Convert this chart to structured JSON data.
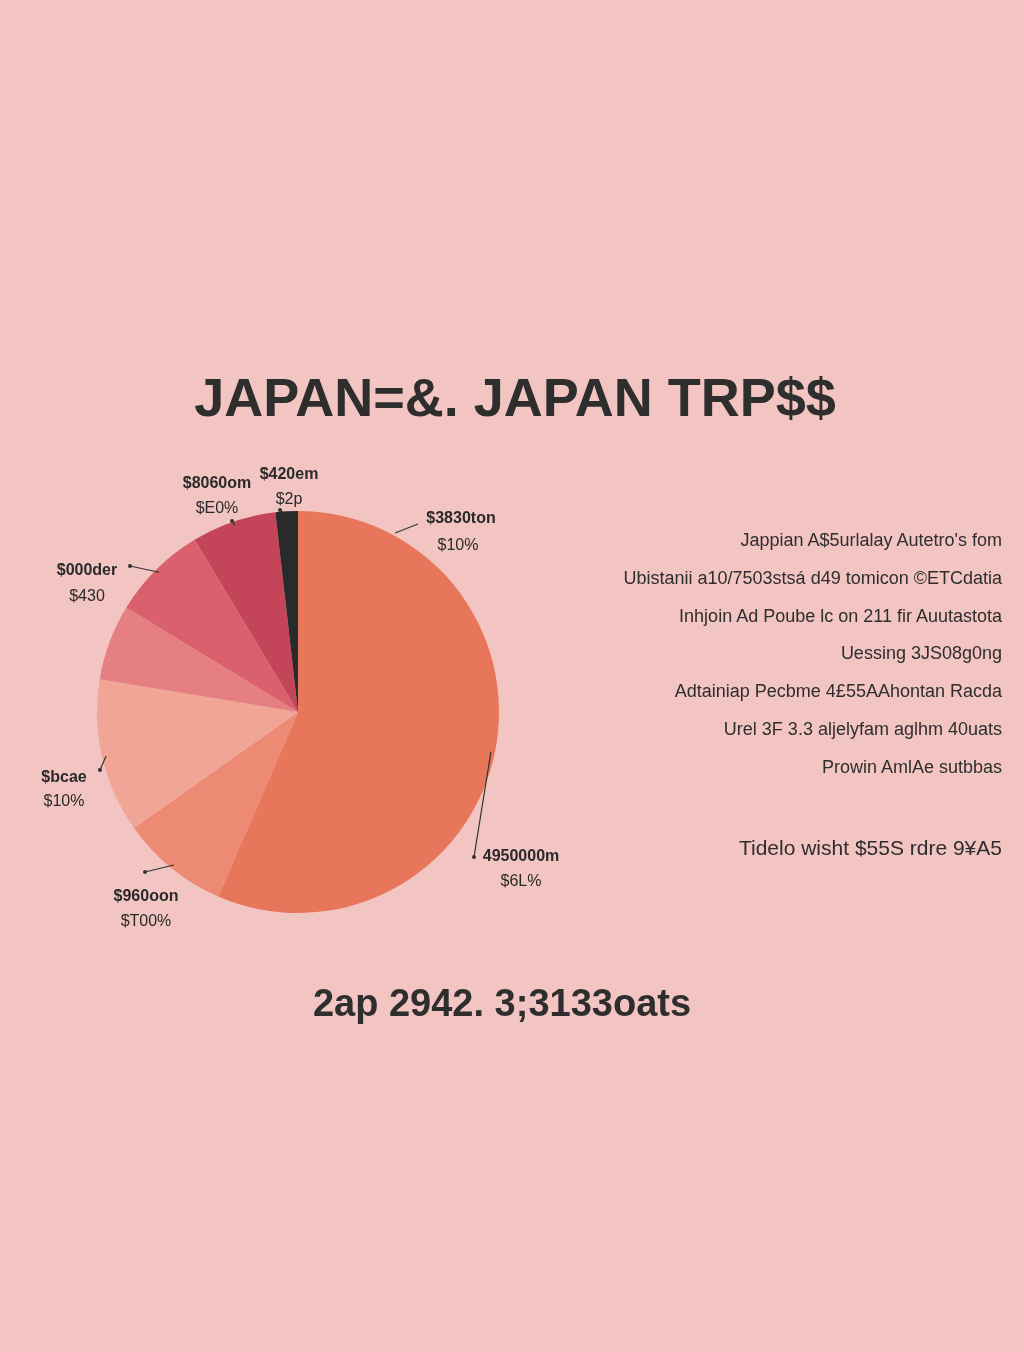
{
  "chart_data": {
    "type": "pie",
    "title": "JAPAN=&. JAPAN TRP$$",
    "categories": [
      "4950000m\n$6L%",
      "$960oon\n$T00%",
      "$bcae\n$10%",
      null,
      "$000der\n$430",
      "$8060om\n$E0%",
      "$420em\n$2p"
    ],
    "values": [
      56.5,
      8.7,
      12.4,
      6.1,
      7.7,
      6.8,
      1.8
    ],
    "colors": [
      "#e8765a",
      "#ec8a74",
      "#f0a596",
      "#e57f82",
      "#d9606c",
      "#c4445a",
      "#2a2a2a"
    ],
    "annotations": [
      "$3830ton",
      "$10%",
      "Jappian A$5urlalay Autetro's fom",
      "Ubistanii a10/7503stsá d49 tomicon ©ETCdatia",
      "Inhjoin Ad Poube lc on 211 fir Auutastota",
      "Uessing 3JS08g0ng",
      "Adtainiap Pecbme 4£55AAhontan Racda",
      "Urel 3F 3.3 aljelyfam aglhm 40uats",
      "Prowin AmlAe sutbbas",
      "Tidelo wisht $55S rdre 9¥A5",
      "2ap 2942. 3;3133oats"
    ]
  }
}
